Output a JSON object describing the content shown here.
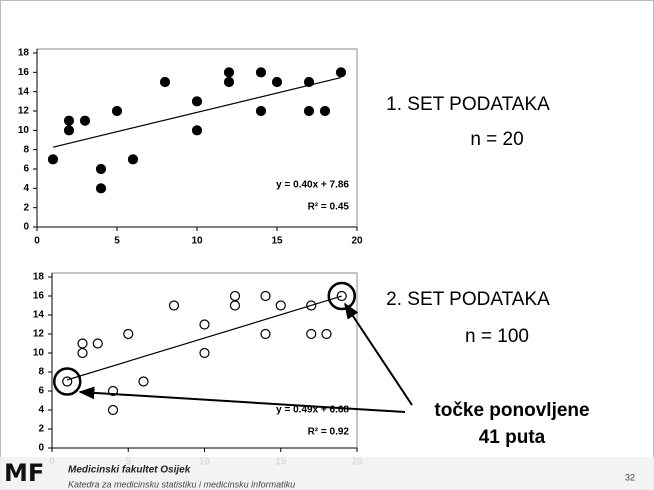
{
  "chart_data": [
    {
      "type": "scatter",
      "marker_fill": true,
      "color": "#000000",
      "x": [
        1,
        2,
        2,
        3,
        4,
        4,
        5,
        6,
        8,
        10,
        10,
        12,
        12,
        14,
        14,
        15,
        17,
        17,
        18,
        19
      ],
      "series": [
        {
          "values": [
            7,
            10,
            11,
            11,
            6,
            4,
            12,
            7,
            15,
            13,
            10,
            16,
            15,
            16,
            12,
            15,
            15,
            12,
            12,
            16
          ]
        }
      ],
      "xlim": [
        0,
        20
      ],
      "xticks": [
        0,
        5,
        10,
        15,
        20
      ],
      "ylim": [
        0,
        18
      ],
      "yticks": [
        0,
        2,
        4,
        6,
        8,
        10,
        12,
        14,
        16,
        18
      ],
      "trendline": {
        "slope": 0.4,
        "intercept": 7.86,
        "equation": "y = 0.40x + 7.86",
        "r_squared": "R² = 0.45"
      }
    },
    {
      "type": "scatter",
      "marker_fill": false,
      "color": "#000000",
      "x": [
        1,
        2,
        2,
        3,
        4,
        4,
        5,
        6,
        8,
        10,
        10,
        12,
        12,
        14,
        14,
        15,
        17,
        17,
        18,
        19
      ],
      "series": [
        {
          "values": [
            7,
            10,
            11,
            11,
            6,
            4,
            12,
            7,
            15,
            13,
            10,
            16,
            15,
            16,
            12,
            15,
            15,
            12,
            12,
            16
          ]
        }
      ],
      "xlim": [
        0,
        20
      ],
      "xticks": [
        0,
        5,
        10,
        15,
        20
      ],
      "ylim": [
        0,
        18
      ],
      "yticks": [
        0,
        2,
        4,
        6,
        8,
        10,
        12,
        14,
        16,
        18
      ],
      "trendline": {
        "slope": 0.49,
        "intercept": 6.68,
        "equation": "y = 0.49x + 6.68",
        "r_squared": "R² = 0.92"
      }
    }
  ],
  "slide": {
    "set1": "1. SET PODATAKA",
    "n1": "n = 20",
    "set2": "2. SET PODATAKA",
    "n2": "n = 100",
    "note_line1": "točke ponovljene",
    "note_line2": "41 puta"
  },
  "footer": {
    "logo": "MF",
    "faculty": "Medicinski fakultet Osijek",
    "department": "Katedra za medicinsku statistiku i medicinsku informatiku",
    "page": "32"
  }
}
